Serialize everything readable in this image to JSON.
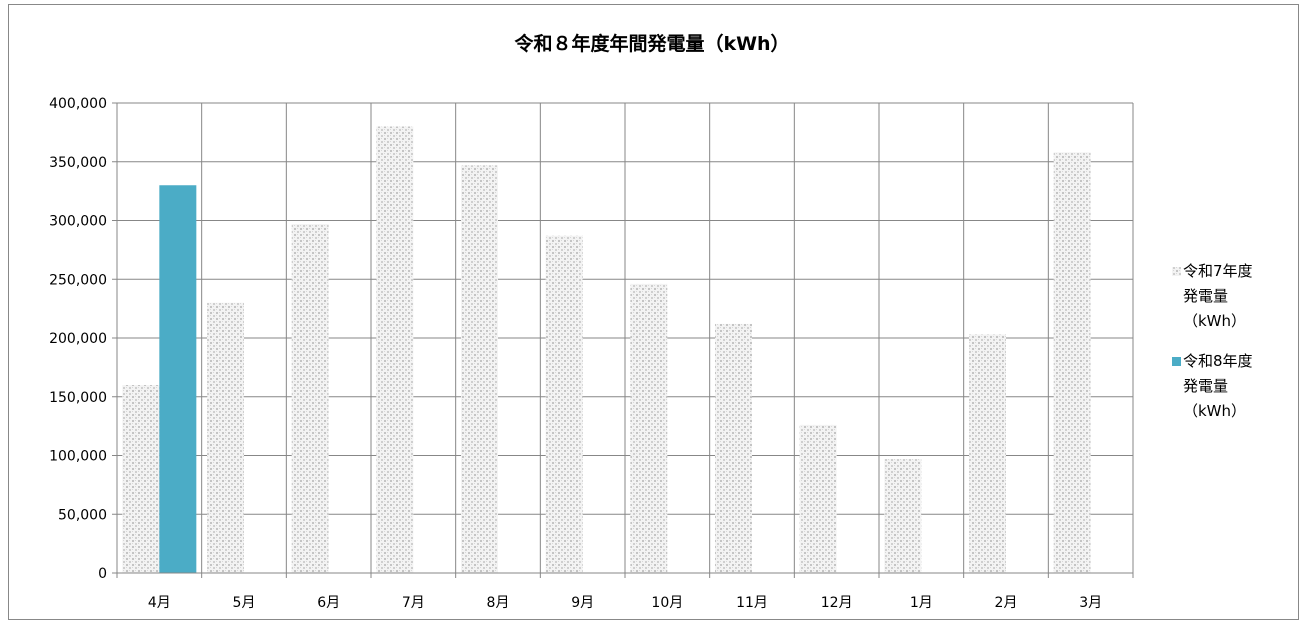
{
  "chart_data": {
    "type": "bar",
    "title": "令和８年度年間発電量（kWh）",
    "categories": [
      "4月",
      "5月",
      "6月",
      "7月",
      "8月",
      "9月",
      "10月",
      "11月",
      "12月",
      "1月",
      "2月",
      "3月"
    ],
    "series": [
      {
        "name": "令和7年度発電量（kWh）",
        "name_lines": [
          "令和7年度",
          "発電量",
          "（kWh）"
        ],
        "values": [
          160000,
          230000,
          297000,
          380000,
          347000,
          287000,
          246000,
          212000,
          126000,
          97000,
          203000,
          358000
        ],
        "color": "#d4d4d4",
        "pattern": "dotted-gray"
      },
      {
        "name": "令和8年度発電量（kWh）",
        "name_lines": [
          "令和8年度",
          "発電量",
          "（kWh）"
        ],
        "values": [
          330000,
          null,
          null,
          null,
          null,
          null,
          null,
          null,
          null,
          null,
          null,
          null
        ],
        "color": "#4bacc6"
      }
    ],
    "ylim": [
      0,
      400000
    ],
    "ytick_labels": [
      "0",
      "50,000",
      "100,000",
      "150,000",
      "200,000",
      "250,000",
      "300,000",
      "350,000",
      "400,000"
    ],
    "grid": true,
    "legend_position": "right"
  }
}
